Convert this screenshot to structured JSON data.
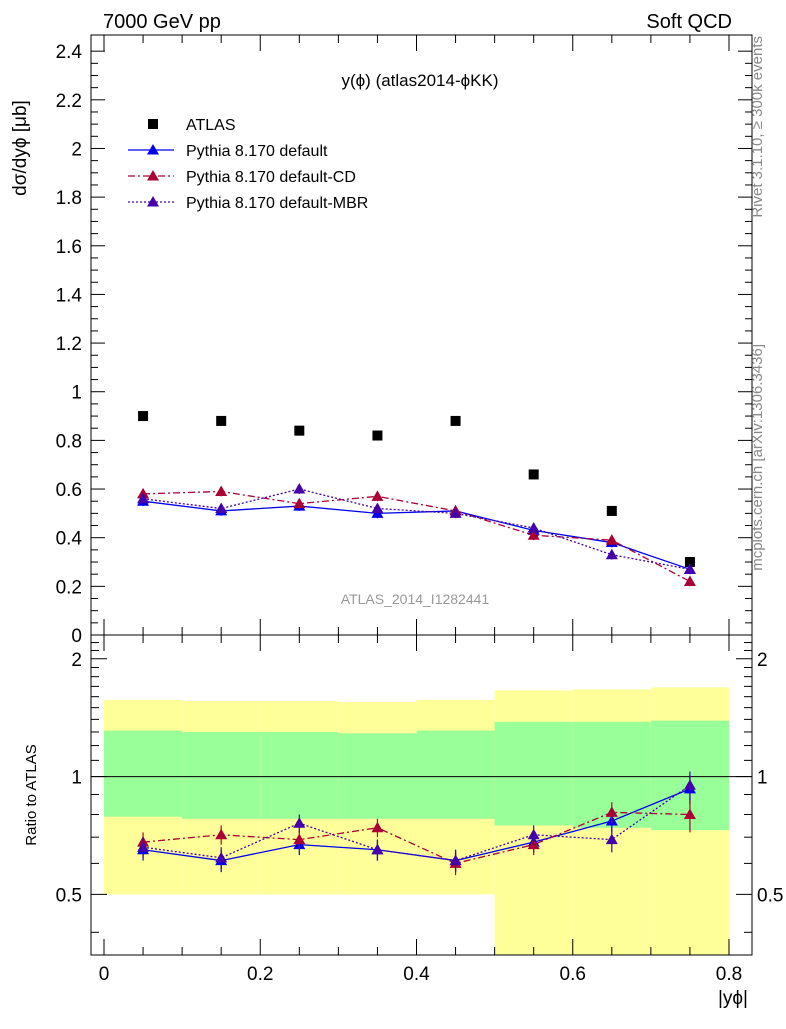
{
  "header": {
    "left": "7000 GeV pp",
    "right": "Soft QCD"
  },
  "side": {
    "rivet": "Rivet 3.1.10, ≥ 300k events",
    "mcplots": "mcplots.cern.ch [arXiv:1306.3436]"
  },
  "chart_data": [
    {
      "type": "scatter",
      "title": "y(ϕ) (atlas2014-ϕKK)",
      "ylabel": "dσ/dyϕ [μb]",
      "watermark": "ATLAS_2014_I1282441",
      "xlim": [
        0,
        0.8
      ],
      "ylim": [
        0,
        2.45
      ],
      "yticks": [
        0,
        0.2,
        0.4,
        0.6,
        0.8,
        1,
        1.2,
        1.4,
        1.6,
        1.8,
        2,
        2.2,
        2.4
      ],
      "ytick_labels": [
        "0",
        "0.2",
        "0.4",
        "0.6",
        "0.8",
        "1",
        "1.2",
        "1.4",
        "1.6",
        "1.8",
        "2",
        "2.2",
        "2.4"
      ],
      "legend_position": "top-left",
      "x": [
        0.05,
        0.15,
        0.25,
        0.35,
        0.45,
        0.55,
        0.65,
        0.75
      ],
      "series": [
        {
          "name": "ATLAS",
          "color": "#000000",
          "style": "data",
          "values": [
            0.9,
            0.88,
            0.84,
            0.82,
            0.88,
            0.66,
            0.51,
            0.3
          ]
        },
        {
          "name": "Pythia 8.170 default",
          "color": "#0000ee",
          "style": "solid",
          "values": [
            0.55,
            0.51,
            0.53,
            0.5,
            0.51,
            0.43,
            0.38,
            0.27
          ],
          "errors": [
            0.02,
            0.02,
            0.02,
            0.02,
            0.02,
            0.02,
            0.02,
            0.02
          ]
        },
        {
          "name": "Pythia 8.170 default-CD",
          "color": "#aa0033",
          "style": "dashdot",
          "values": [
            0.58,
            0.59,
            0.54,
            0.57,
            0.51,
            0.41,
            0.39,
            0.22
          ],
          "errors": [
            0.02,
            0.02,
            0.02,
            0.02,
            0.02,
            0.02,
            0.02,
            0.02
          ]
        },
        {
          "name": "Pythia 8.170 default-MBR",
          "color": "#4400aa",
          "style": "dotted",
          "values": [
            0.56,
            0.52,
            0.6,
            0.52,
            0.5,
            0.44,
            0.33,
            0.27
          ],
          "errors": [
            0.02,
            0.02,
            0.02,
            0.02,
            0.02,
            0.02,
            0.02,
            0.02
          ]
        }
      ]
    },
    {
      "type": "scatter",
      "ylabel": "Ratio to ATLAS",
      "xlabel": "|yϕ|",
      "xlim": [
        0,
        0.8
      ],
      "ylim": [
        0.35,
        2.3
      ],
      "yticks": [
        0.5,
        1,
        2
      ],
      "ytick_labels": [
        "0.5",
        "1",
        "2"
      ],
      "xticks": [
        0,
        0.2,
        0.4,
        0.6,
        0.8
      ],
      "xtick_labels": [
        "0",
        "0.2",
        "0.4",
        "0.6",
        "0.8"
      ],
      "bands": {
        "x_edges": [
          0,
          0.1,
          0.2,
          0.3,
          0.4,
          0.5,
          0.6,
          0.7,
          0.8
        ],
        "outer": {
          "color": "#ffff99",
          "low": [
            0.5,
            0.5,
            0.5,
            0.5,
            0.5,
            0.35,
            0.35,
            0.35
          ],
          "high": [
            1.57,
            1.56,
            1.56,
            1.55,
            1.57,
            1.66,
            1.67,
            1.69
          ]
        },
        "inner": {
          "color": "#99ff99",
          "low": [
            0.79,
            0.78,
            0.78,
            0.78,
            0.78,
            0.75,
            0.74,
            0.73
          ],
          "high": [
            1.31,
            1.3,
            1.3,
            1.29,
            1.31,
            1.38,
            1.38,
            1.39
          ]
        }
      },
      "x": [
        0.05,
        0.15,
        0.25,
        0.35,
        0.45,
        0.55,
        0.65,
        0.75
      ],
      "series": [
        {
          "name": "Pythia 8.170 default",
          "color": "#0000ee",
          "style": "solid",
          "values": [
            0.65,
            0.61,
            0.67,
            0.65,
            0.61,
            0.68,
            0.77,
            0.93
          ],
          "errors": [
            0.04,
            0.04,
            0.04,
            0.04,
            0.04,
            0.04,
            0.05,
            0.08
          ]
        },
        {
          "name": "Pythia 8.170 default-CD",
          "color": "#aa0033",
          "style": "dashdot",
          "values": [
            0.68,
            0.71,
            0.69,
            0.74,
            0.6,
            0.67,
            0.81,
            0.8
          ],
          "errors": [
            0.04,
            0.04,
            0.04,
            0.04,
            0.04,
            0.04,
            0.05,
            0.08
          ]
        },
        {
          "name": "Pythia 8.170 default-MBR",
          "color": "#4400aa",
          "style": "dotted",
          "values": [
            0.66,
            0.62,
            0.76,
            0.65,
            0.61,
            0.71,
            0.69,
            0.95
          ],
          "errors": [
            0.04,
            0.04,
            0.04,
            0.04,
            0.04,
            0.04,
            0.05,
            0.08
          ]
        }
      ]
    }
  ]
}
